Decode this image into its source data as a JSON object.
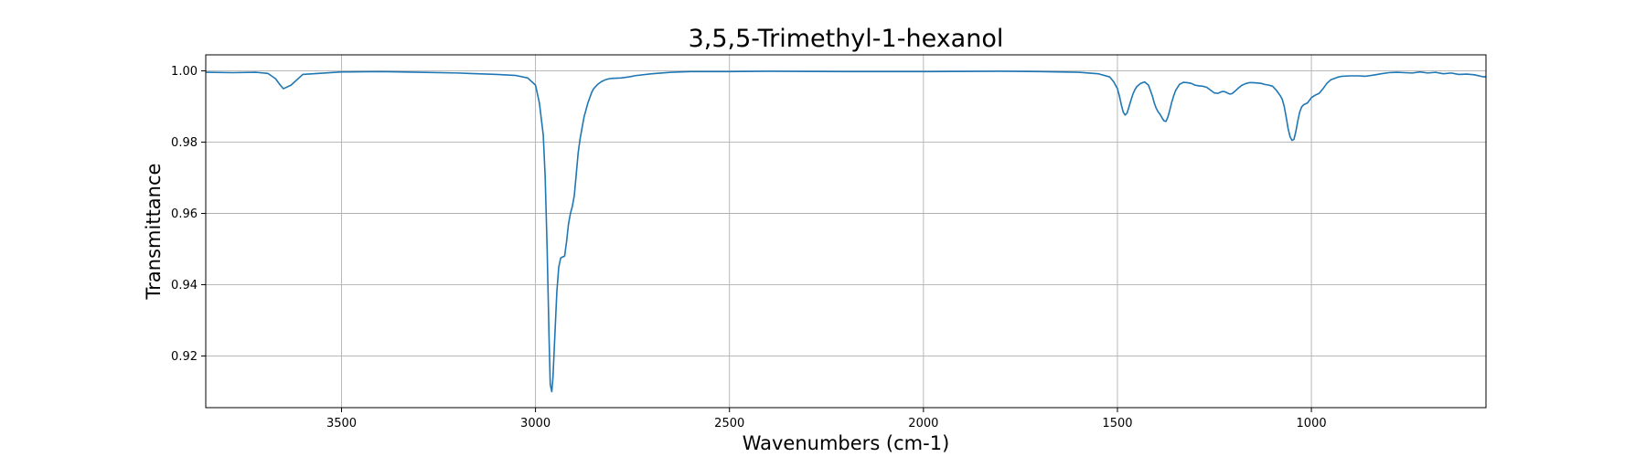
{
  "chart_data": {
    "type": "line",
    "title": "3,5,5-Trimethyl-1-hexanol",
    "xlabel": "Wavenumbers (cm-1)",
    "ylabel": "Transmittance",
    "xlim": [
      3850,
      550
    ],
    "ylim": [
      0.9055,
      1.0045
    ],
    "x_reversed": true,
    "grid": true,
    "legend": "none",
    "line_color": "#1f77b4",
    "x_ticks": [
      {
        "value": 3500,
        "label": "3500"
      },
      {
        "value": 3000,
        "label": "3000"
      },
      {
        "value": 2500,
        "label": "2500"
      },
      {
        "value": 2000,
        "label": "2000"
      },
      {
        "value": 1500,
        "label": "1500"
      },
      {
        "value": 1000,
        "label": "1000"
      }
    ],
    "y_ticks": [
      {
        "value": 0.92,
        "label": "0.92"
      },
      {
        "value": 0.94,
        "label": "0.94"
      },
      {
        "value": 0.96,
        "label": "0.96"
      },
      {
        "value": 0.98,
        "label": "0.98"
      },
      {
        "value": 1.0,
        "label": "1.00"
      }
    ],
    "series": [
      {
        "x": [
          3850,
          3780,
          3720,
          3690,
          3670,
          3660,
          3650,
          3630,
          3600,
          3500,
          3400,
          3300,
          3200,
          3100,
          3050,
          3020,
          3000,
          2990,
          2980,
          2975,
          2970,
          2965,
          2962,
          2958,
          2955,
          2950,
          2945,
          2940,
          2935,
          2930,
          2925,
          2920,
          2915,
          2910,
          2905,
          2900,
          2895,
          2890,
          2885,
          2880,
          2875,
          2870,
          2865,
          2860,
          2855,
          2850,
          2840,
          2830,
          2820,
          2810,
          2800,
          2780,
          2760,
          2740,
          2700,
          2650,
          2600,
          2500,
          2400,
          2200,
          2000,
          1800,
          1700,
          1600,
          1550,
          1520,
          1510,
          1500,
          1495,
          1490,
          1485,
          1480,
          1475,
          1470,
          1465,
          1460,
          1455,
          1450,
          1440,
          1430,
          1420,
          1415,
          1410,
          1405,
          1400,
          1395,
          1390,
          1385,
          1380,
          1375,
          1370,
          1365,
          1360,
          1355,
          1350,
          1340,
          1330,
          1320,
          1310,
          1300,
          1290,
          1280,
          1270,
          1260,
          1250,
          1240,
          1235,
          1230,
          1225,
          1220,
          1215,
          1210,
          1205,
          1200,
          1190,
          1180,
          1170,
          1160,
          1150,
          1140,
          1130,
          1120,
          1110,
          1100,
          1090,
          1080,
          1075,
          1070,
          1065,
          1060,
          1055,
          1050,
          1045,
          1040,
          1035,
          1030,
          1025,
          1020,
          1010,
          1000,
          990,
          980,
          970,
          960,
          950,
          940,
          930,
          920,
          900,
          880,
          860,
          840,
          820,
          800,
          780,
          760,
          740,
          720,
          700,
          680,
          660,
          640,
          620,
          600,
          580,
          560,
          550
        ],
        "y": [
          0.9996,
          0.9995,
          0.9996,
          0.9993,
          0.9978,
          0.9963,
          0.995,
          0.996,
          0.999,
          0.9997,
          0.9998,
          0.9996,
          0.9994,
          0.999,
          0.9987,
          0.998,
          0.996,
          0.991,
          0.982,
          0.97,
          0.95,
          0.925,
          0.912,
          0.91,
          0.914,
          0.926,
          0.938,
          0.945,
          0.9475,
          0.9478,
          0.948,
          0.952,
          0.957,
          0.96,
          0.962,
          0.965,
          0.971,
          0.977,
          0.981,
          0.984,
          0.987,
          0.989,
          0.991,
          0.9925,
          0.994,
          0.995,
          0.9962,
          0.997,
          0.9975,
          0.9978,
          0.9979,
          0.998,
          0.9983,
          0.9987,
          0.9992,
          0.9996,
          0.9998,
          0.9998,
          0.9999,
          0.9998,
          0.9998,
          0.9999,
          0.9998,
          0.9996,
          0.9992,
          0.9983,
          0.997,
          0.995,
          0.993,
          0.9905,
          0.9884,
          0.9876,
          0.9882,
          0.99,
          0.9918,
          0.9935,
          0.9947,
          0.9956,
          0.9965,
          0.9969,
          0.996,
          0.9945,
          0.993,
          0.991,
          0.9895,
          0.9885,
          0.9878,
          0.9868,
          0.986,
          0.9858,
          0.987,
          0.989,
          0.9912,
          0.993,
          0.9945,
          0.9962,
          0.9968,
          0.9967,
          0.9965,
          0.996,
          0.9958,
          0.9957,
          0.9954,
          0.9946,
          0.9938,
          0.9937,
          0.994,
          0.9942,
          0.9942,
          0.994,
          0.9937,
          0.9935,
          0.9936,
          0.994,
          0.995,
          0.9959,
          0.9964,
          0.9967,
          0.9967,
          0.9966,
          0.9965,
          0.9962,
          0.996,
          0.9957,
          0.9945,
          0.993,
          0.992,
          0.99,
          0.987,
          0.9838,
          0.9815,
          0.9805,
          0.9808,
          0.983,
          0.986,
          0.9885,
          0.9899,
          0.9905,
          0.991,
          0.9925,
          0.9932,
          0.9937,
          0.995,
          0.9965,
          0.9975,
          0.9979,
          0.9983,
          0.9985,
          0.9986,
          0.9986,
          0.9985,
          0.9988,
          0.9992,
          0.9995,
          0.9996,
          0.9995,
          0.9994,
          0.9997,
          0.9994,
          0.9996,
          0.9992,
          0.9994,
          0.999,
          0.9991,
          0.9989,
          0.9984,
          0.9983
        ]
      }
    ]
  }
}
